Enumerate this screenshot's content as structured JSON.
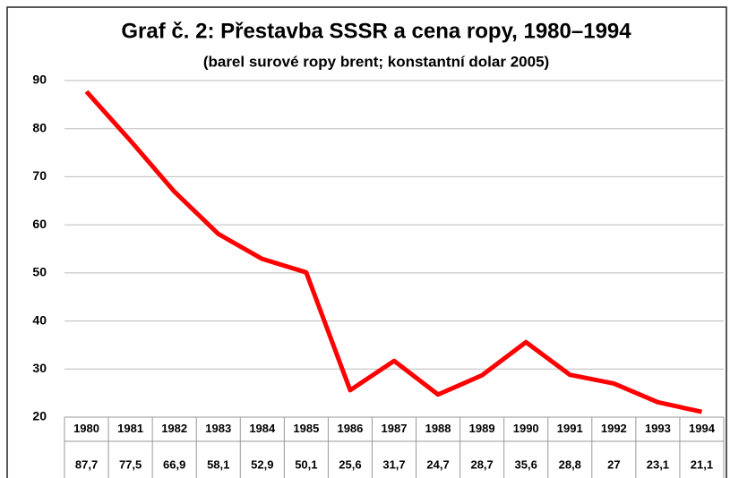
{
  "chart_data": {
    "type": "line",
    "title": "Graf č. 2: Přestavba SSSR a cena ropy, 1980–1994",
    "subtitle": "(barel surové ropy brent; konstantní dolar 2005)",
    "categories": [
      "1980",
      "1981",
      "1982",
      "1983",
      "1984",
      "1985",
      "1986",
      "1987",
      "1988",
      "1989",
      "1990",
      "1991",
      "1992",
      "1993",
      "1994"
    ],
    "values": [
      87.7,
      77.5,
      66.9,
      58.1,
      52.9,
      50.1,
      25.6,
      31.7,
      24.7,
      28.7,
      35.6,
      28.8,
      27,
      23.1,
      21.1
    ],
    "value_labels": [
      "87,7",
      "77,5",
      "66,9",
      "58,1",
      "52,9",
      "50,1",
      "25,6",
      "31,7",
      "24,7",
      "28,7",
      "35,6",
      "28,8",
      "27",
      "23,1",
      "21,1"
    ],
    "color": "#ff0000",
    "ylim": [
      20,
      90
    ],
    "yticks": [
      20,
      30,
      40,
      50,
      60,
      70,
      80,
      90
    ],
    "grid": true
  }
}
